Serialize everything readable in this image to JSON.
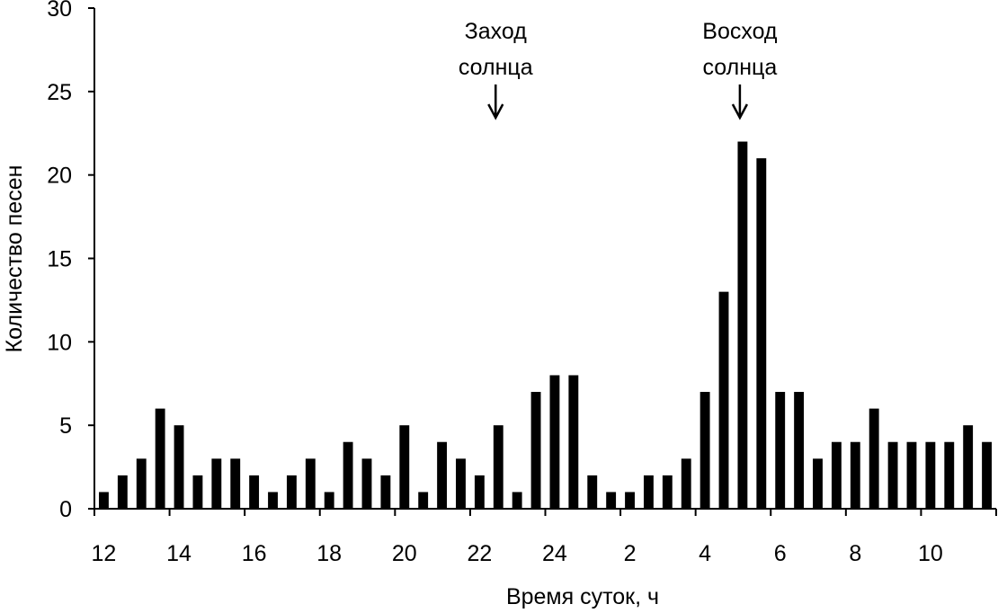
{
  "chart_data": {
    "type": "bar",
    "title": "",
    "xlabel": "Время суток, ч",
    "ylabel": "Количество песен",
    "ylim": [
      0,
      30
    ],
    "yticks": [
      0,
      5,
      10,
      15,
      20,
      25,
      30
    ],
    "xticks": [
      "12",
      "14",
      "16",
      "18",
      "20",
      "22",
      "24",
      "2",
      "4",
      "6",
      "8",
      "10"
    ],
    "grid": false,
    "bar_color": "#000000",
    "values": [
      1,
      2,
      3,
      6,
      5,
      2,
      3,
      3,
      2,
      1,
      2,
      3,
      1,
      4,
      3,
      2,
      5,
      1,
      4,
      3,
      2,
      5,
      1,
      7,
      8,
      8,
      2,
      1,
      1,
      2,
      2,
      3,
      7,
      13,
      22,
      21,
      7,
      7,
      3,
      4,
      4,
      6,
      4,
      4,
      4,
      4,
      5,
      4
    ],
    "annotations": [
      {
        "label": "Заход солнца",
        "lines": [
          "Заход",
          "солнца"
        ],
        "at_bar": 21
      },
      {
        "label": "Восход солнца",
        "lines": [
          "Восход",
          "солнца"
        ],
        "at_bar": 34
      }
    ]
  }
}
